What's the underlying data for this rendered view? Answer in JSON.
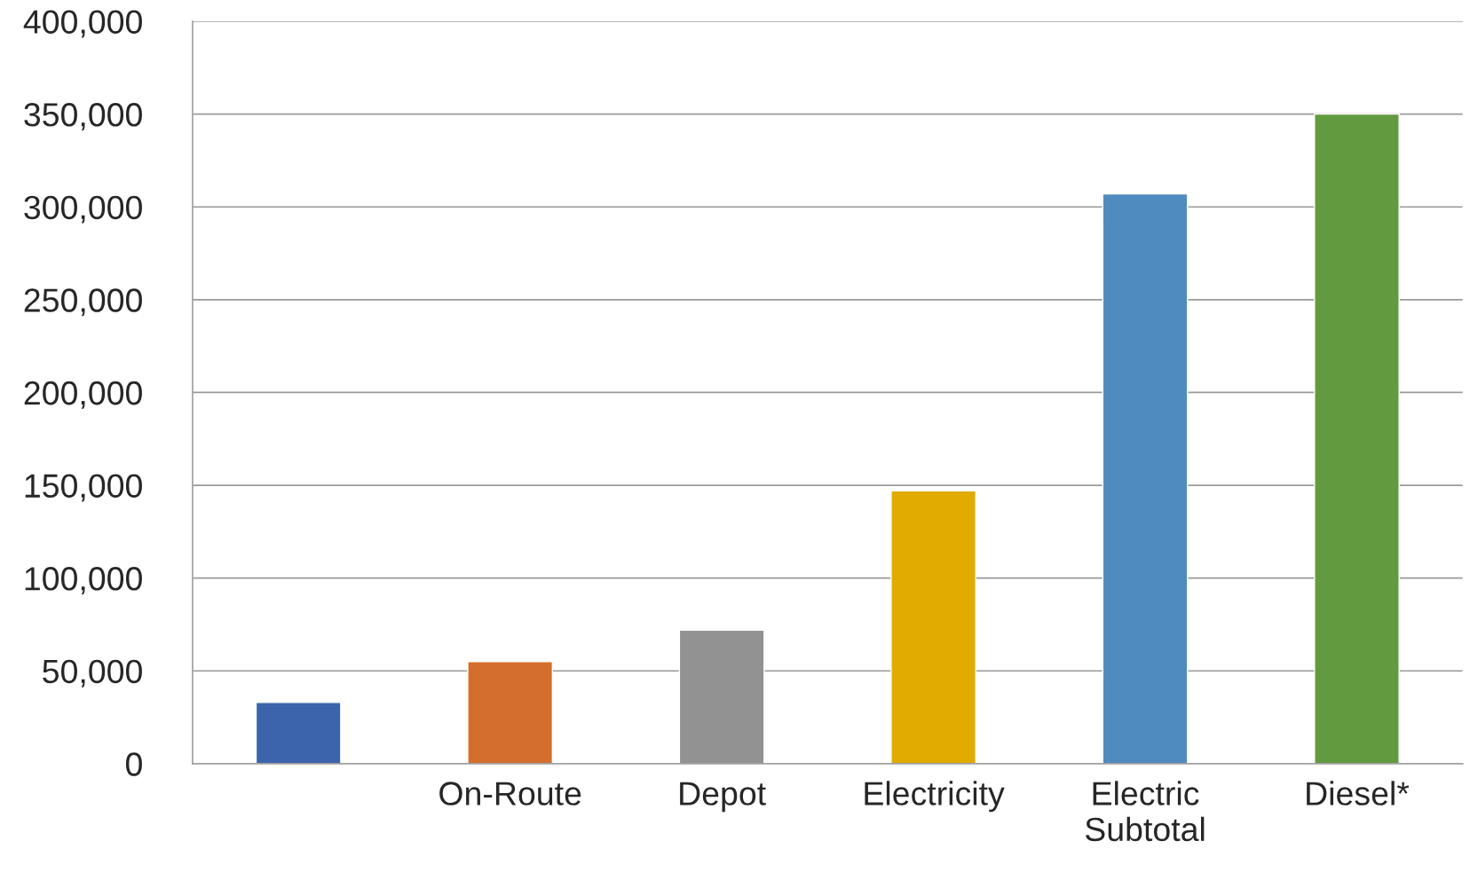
{
  "chart_data": {
    "type": "bar",
    "categories": [
      null,
      "On-Route",
      "Depot",
      "Electricity",
      "Electric\nSubtotal",
      "Diesel*"
    ],
    "values": [
      33000,
      55000,
      72000,
      147000,
      307000,
      350000
    ],
    "colors": [
      "#3c64ad",
      "#d46e2c",
      "#929292",
      "#e2ab00",
      "#508bbf",
      "#629b3f"
    ],
    "ylim": [
      0,
      400000
    ],
    "yticks": [
      0,
      {
        "value": 50000,
        "label": "50,000"
      },
      {
        "value": 100000,
        "label": "100,000"
      },
      {
        "value": 150000,
        "label": "150,000"
      },
      {
        "value": 200000,
        "label": "200,000"
      },
      {
        "value": 250000,
        "label": "250,000"
      },
      {
        "value": 300000,
        "label": "300,000"
      },
      {
        "value": 350000,
        "label": "350,000"
      },
      {
        "value": 400000,
        "label": "400,000"
      }
    ],
    "grid": "y",
    "legend": false
  }
}
